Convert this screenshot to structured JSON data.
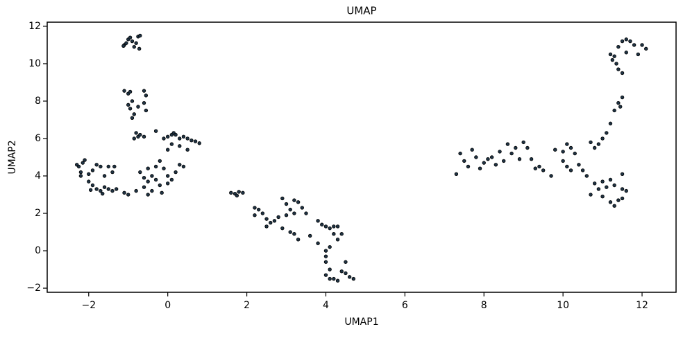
{
  "chart_data": {
    "type": "scatter",
    "title": "UMAP",
    "x_label": "UMAP1",
    "y_label": "UMAP2",
    "color": "#1f3344",
    "xlim": [
      -3.05,
      12.86
    ],
    "ylim": [
      -2.22,
      12.22
    ],
    "xticks": [
      {
        "value": -2,
        "label": "−2"
      },
      0,
      2,
      4,
      6,
      8,
      10,
      12
    ],
    "yticks": [
      {
        "value": -2,
        "label": "−2"
      },
      0,
      2,
      4,
      6,
      8,
      10,
      12
    ],
    "x": [
      -1.1,
      -1.05,
      -1.0,
      -0.95,
      -0.9,
      -0.85,
      -0.8,
      -0.75,
      -0.7,
      -0.72,
      -1.12,
      -1.1,
      -1.0,
      -0.95,
      -0.9,
      -1.0,
      -0.95,
      -0.85,
      -0.9,
      -0.75,
      -0.6,
      -0.55,
      -0.6,
      -0.55,
      -0.8,
      -0.75,
      -0.7,
      -0.85,
      -0.6,
      -0.3,
      -0.1,
      0,
      0.1,
      0.15,
      0.2,
      0.3,
      0.4,
      0.5,
      0.6,
      0.7,
      0.8,
      0.3,
      0.5,
      0.1,
      0.0,
      -2.3,
      -2.25,
      -2.2,
      -2.15,
      -2.1,
      -2.0,
      -1.9,
      -1.8,
      -1.7,
      -1.6,
      -1.5,
      -1.35,
      -1.4,
      -2.0,
      -1.9,
      -1.8,
      -1.7,
      -1.6,
      -1.5,
      -1.4,
      -1.3,
      -1.1,
      -1.0,
      -0.8,
      -2.2,
      -1.95,
      -1.65,
      -0.7,
      -0.5,
      -0.4,
      -0.3,
      -0.2,
      -0.1,
      0,
      0.1,
      0.2,
      0.3,
      0.4,
      -0.3,
      -0.5,
      -0.6,
      -0.4,
      -0.5,
      -0.2,
      0.0,
      -0.15,
      -0.6,
      1.6,
      1.7,
      1.8,
      1.9,
      1.75,
      2.2,
      2.3,
      2.4,
      2.5,
      2.5,
      2.6,
      2.7,
      2.8,
      2.9,
      3.0,
      3.1,
      3.2,
      3.3,
      3.4,
      3.5,
      3.0,
      3.2,
      2.9,
      3.1,
      3.2,
      3.3,
      3.6,
      3.8,
      3.9,
      4.0,
      4.1,
      4.2,
      4.3,
      4.4,
      4.3,
      4.1,
      4.0,
      4.0,
      4.0,
      4.1,
      4.0,
      4.1,
      4.2,
      4.3,
      4.5,
      4.5,
      4.6,
      4.7,
      4.4,
      3.8,
      4.2,
      2.2,
      7.3,
      7.4,
      7.5,
      7.6,
      7.7,
      7.8,
      7.9,
      8.0,
      8.1,
      8.2,
      8.3,
      8.4,
      8.5,
      8.6,
      8.7,
      8.8,
      8.9,
      9.0,
      9.1,
      9.2,
      9.3,
      9.4,
      9.5,
      9.7,
      9.8,
      10.0,
      10.1,
      10.2,
      10.3,
      10.0,
      10.1,
      10.2,
      10.4,
      10.5,
      10.6,
      10.7,
      10.8,
      10.9,
      11.0,
      11.1,
      11.2,
      11.3,
      11.4,
      11.5,
      11.45,
      11.4,
      11.5,
      11.35,
      11.3,
      11.4,
      11.5,
      11.6,
      11.7,
      11.8,
      11.6,
      12.0,
      12.1,
      11.9,
      11.2,
      11.25,
      10.7,
      10.9,
      11.0,
      11.1,
      11.2,
      11.3,
      11.0,
      11.2,
      11.4,
      11.5,
      11.3,
      11.5,
      11.6,
      11.5,
      10.8
    ],
    "values": [
      11.0,
      11.1,
      11.3,
      11.4,
      11.2,
      10.9,
      11.1,
      11.45,
      11.5,
      10.8,
      10.95,
      8.55,
      8.4,
      8.5,
      8.0,
      7.8,
      7.6,
      7.3,
      7.1,
      7.7,
      8.55,
      8.3,
      7.9,
      7.5,
      6.3,
      6.1,
      6.2,
      6.0,
      6.1,
      6.4,
      6.0,
      6.1,
      6.2,
      6.3,
      6.2,
      6.0,
      6.1,
      6.0,
      5.9,
      5.85,
      5.75,
      5.6,
      5.4,
      5.7,
      5.4,
      4.6,
      4.5,
      4.2,
      4.7,
      4.85,
      4.1,
      4.3,
      4.6,
      4.5,
      4.0,
      4.5,
      4.5,
      4.2,
      3.7,
      3.5,
      3.3,
      3.2,
      3.4,
      3.3,
      3.2,
      3.3,
      3.1,
      3.0,
      3.2,
      4.0,
      3.25,
      3.05,
      4.2,
      4.4,
      4.0,
      4.5,
      4.8,
      4.4,
      4.0,
      3.8,
      4.2,
      4.6,
      4.5,
      3.8,
      3.7,
      3.4,
      3.2,
      3.0,
      3.5,
      3.6,
      3.1,
      3.9,
      3.1,
      3.05,
      3.15,
      3.1,
      2.95,
      2.3,
      2.2,
      2.0,
      1.7,
      1.3,
      1.5,
      1.6,
      1.8,
      2.8,
      2.5,
      2.2,
      2.7,
      2.6,
      2.3,
      2.0,
      1.9,
      2.0,
      1.2,
      1.0,
      0.9,
      0.6,
      0.8,
      1.6,
      1.4,
      1.3,
      1.2,
      1.3,
      1.3,
      0.9,
      0.6,
      0.2,
      0.0,
      -0.3,
      -0.6,
      -1.0,
      -1.3,
      -1.5,
      -1.5,
      -1.6,
      -0.6,
      -1.2,
      -1.4,
      -1.5,
      -1.1,
      0.4,
      0.9,
      1.9,
      4.1,
      5.2,
      4.8,
      4.5,
      5.4,
      5.0,
      4.4,
      4.7,
      4.9,
      5.0,
      4.6,
      5.3,
      4.8,
      5.7,
      5.2,
      5.5,
      4.9,
      5.8,
      5.5,
      4.9,
      4.4,
      4.5,
      4.3,
      4.0,
      5.4,
      5.3,
      5.7,
      5.5,
      5.2,
      4.8,
      4.5,
      4.3,
      4.6,
      4.3,
      4.0,
      5.8,
      5.5,
      5.7,
      6.0,
      6.3,
      6.8,
      7.5,
      7.9,
      8.2,
      7.7,
      9.7,
      9.5,
      10.0,
      10.4,
      10.9,
      11.2,
      11.3,
      11.2,
      11.0,
      10.6,
      11.0,
      10.8,
      10.5,
      10.5,
      10.2,
      3.0,
      3.3,
      3.7,
      3.4,
      3.8,
      3.5,
      2.9,
      2.6,
      2.7,
      2.8,
      2.4,
      3.3,
      3.2,
      4.1,
      3.6
    ]
  }
}
